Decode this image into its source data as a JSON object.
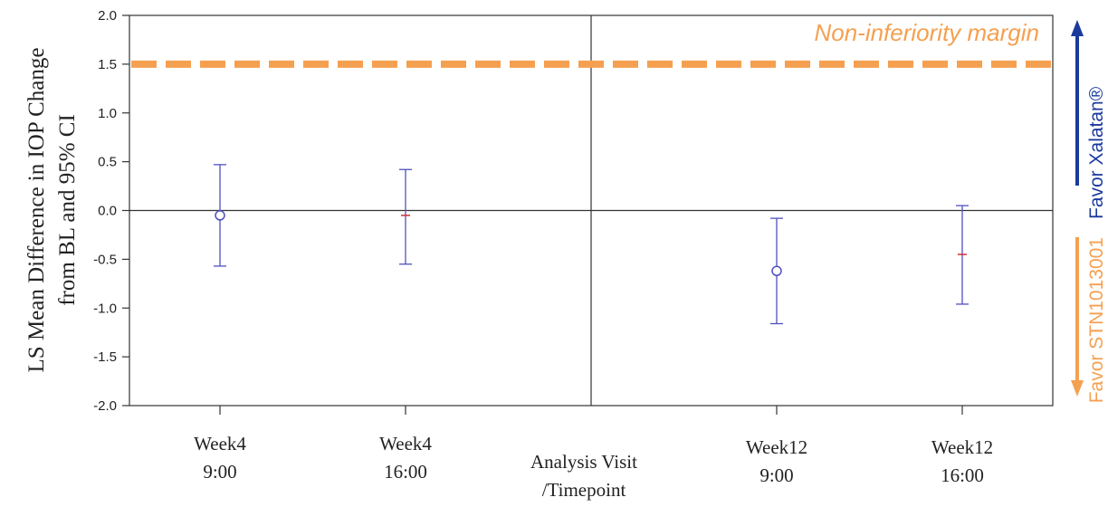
{
  "chart_data": {
    "type": "scatter",
    "ylabel_line1": "LS Mean Difference in IOP Change",
    "ylabel_line2": "from BL and 95% CI",
    "xlabel_line1": "Analysis Visit",
    "xlabel_line2": "/Timepoint",
    "ylim": [
      -2.0,
      2.0
    ],
    "yticks": [
      "2.0",
      "1.5",
      "1.0",
      "0.5",
      "0.0",
      "-0.5",
      "-1.0",
      "-1.5",
      "-2.0"
    ],
    "ytick_values": [
      2.0,
      1.5,
      1.0,
      0.5,
      0.0,
      -0.5,
      -1.0,
      -1.5,
      -2.0
    ],
    "grid": false,
    "categories": [
      {
        "line1": "Week4",
        "line2": "9:00"
      },
      {
        "line1": "Week4",
        "line2": "16:00"
      },
      {
        "line1": "Week12",
        "line2": "9:00"
      },
      {
        "line1": "Week12",
        "line2": "16:00"
      }
    ],
    "estimates": [
      {
        "mean": -0.05,
        "lower": -0.57,
        "upper": 0.47,
        "marker": "circle"
      },
      {
        "mean": -0.05,
        "lower": -0.55,
        "upper": 0.42,
        "marker": "dash"
      },
      {
        "mean": -0.62,
        "lower": -1.16,
        "upper": -0.08,
        "marker": "circle"
      },
      {
        "mean": -0.45,
        "lower": -0.96,
        "upper": 0.05,
        "marker": "dash"
      }
    ],
    "reference_line": {
      "value": 1.5,
      "label": "Non-inferiority margin"
    },
    "favor_up": "Favor Xalatan®",
    "favor_down": "Favor STN1013001",
    "colors": {
      "ci": "#5050c0",
      "mean_dash": "#d03030",
      "margin": "#f5a050",
      "favor_up": "#1a3a9c",
      "favor_down": "#f5a050",
      "axis": "#333333"
    }
  }
}
